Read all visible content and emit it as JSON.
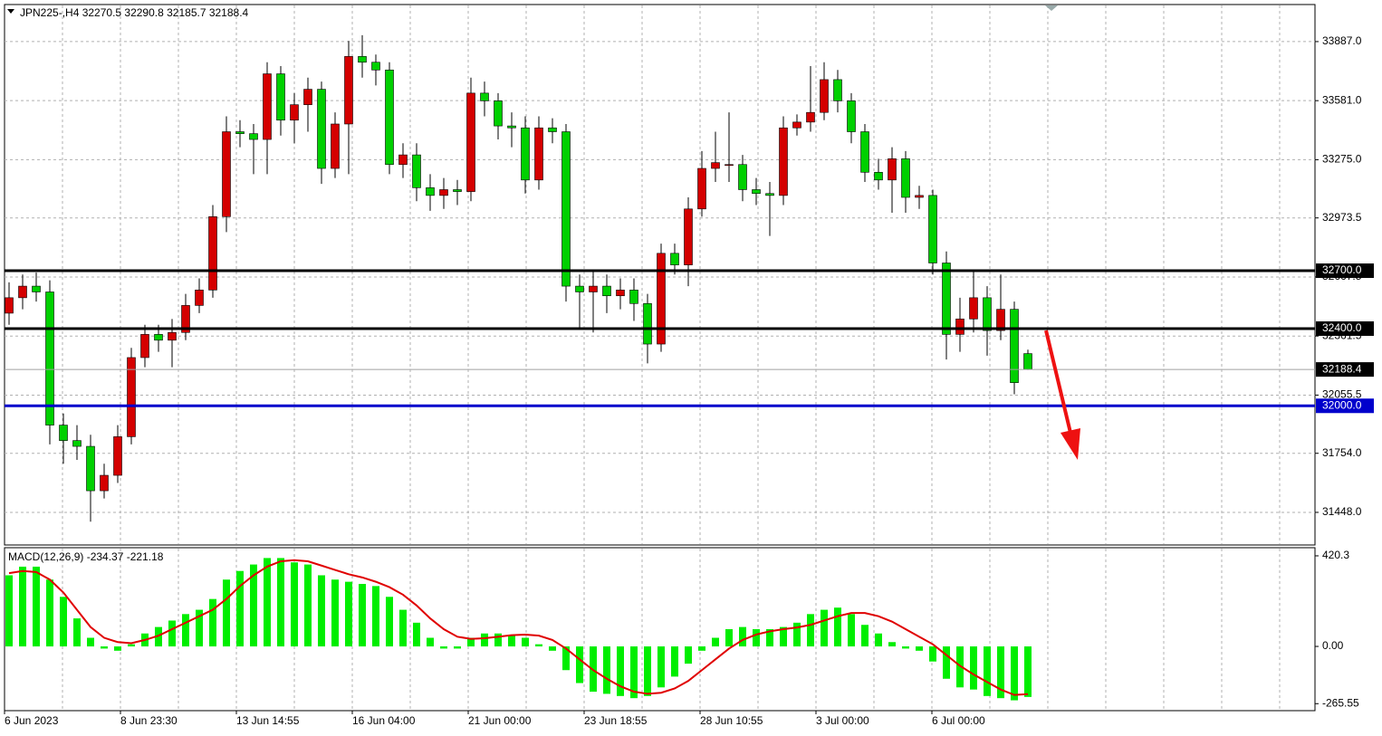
{
  "chart_data": [
    {
      "type": "candlestick",
      "title": "JPN225-,H4  32270.5 32290.8 32185.7 32188.4",
      "ylim": [
        31279,
        34079
      ],
      "yticks": [
        {
          "value": 33887,
          "label": "33887.0"
        },
        {
          "value": 33581,
          "label": "33581.0"
        },
        {
          "value": 33275,
          "label": "33275.0"
        },
        32973.5,
        32667.5,
        32361.5,
        32055.5,
        {
          "value": 31754,
          "label": "31754.0"
        },
        {
          "value": 31448,
          "label": "31448.0"
        }
      ],
      "grid": true,
      "up_color": "#d40000",
      "down_color": "#00d000",
      "levels": [
        {
          "value": 32700,
          "label": "32700.0",
          "color": "#000000"
        },
        {
          "value": 32400,
          "label": "32400.0",
          "color": "#000000"
        },
        {
          "value": 32000,
          "label": "32000.0",
          "color": "#0000cc"
        }
      ],
      "current_price": 32188.4,
      "ohlc": [
        [
          32480,
          32640,
          32420,
          32560
        ],
        [
          32560,
          32680,
          32500,
          32620
        ],
        [
          32620,
          32690,
          32540,
          32590
        ],
        [
          32590,
          32650,
          31800,
          31900
        ],
        [
          31900,
          31960,
          31700,
          31820
        ],
        [
          31820,
          31900,
          31720,
          31790
        ],
        [
          31790,
          31850,
          31400,
          31560
        ],
        [
          31560,
          31700,
          31520,
          31640
        ],
        [
          31640,
          31900,
          31600,
          31840
        ],
        [
          31840,
          32300,
          31800,
          32250
        ],
        [
          32250,
          32420,
          32200,
          32370
        ],
        [
          32370,
          32420,
          32280,
          32340
        ],
        [
          32340,
          32450,
          32200,
          32380
        ],
        [
          32380,
          32580,
          32340,
          32520
        ],
        [
          32520,
          32660,
          32480,
          32600
        ],
        [
          32600,
          33040,
          32560,
          32980
        ],
        [
          32980,
          33500,
          32900,
          33420
        ],
        [
          33420,
          33480,
          33340,
          33410
        ],
        [
          33410,
          33460,
          33200,
          33380
        ],
        [
          33380,
          33780,
          33200,
          33720
        ],
        [
          33720,
          33760,
          33400,
          33480
        ],
        [
          33480,
          33620,
          33360,
          33560
        ],
        [
          33560,
          33700,
          33420,
          33640
        ],
        [
          33640,
          33680,
          33150,
          33230
        ],
        [
          33230,
          33520,
          33180,
          33460
        ],
        [
          33460,
          33890,
          33200,
          33810
        ],
        [
          33810,
          33920,
          33700,
          33780
        ],
        [
          33780,
          33820,
          33660,
          33740
        ],
        [
          33740,
          33780,
          33200,
          33250
        ],
        [
          33250,
          33360,
          33180,
          33300
        ],
        [
          33300,
          33360,
          33060,
          33130
        ],
        [
          33130,
          33200,
          33010,
          33090
        ],
        [
          33090,
          33180,
          33020,
          33120
        ],
        [
          33120,
          33170,
          33040,
          33110
        ],
        [
          33110,
          33700,
          33060,
          33620
        ],
        [
          33620,
          33680,
          33500,
          33580
        ],
        [
          33580,
          33620,
          33380,
          33450
        ],
        [
          33450,
          33520,
          33340,
          33440
        ],
        [
          33440,
          33500,
          33100,
          33170
        ],
        [
          33170,
          33500,
          33120,
          33440
        ],
        [
          33440,
          33490,
          33360,
          33420
        ],
        [
          33420,
          33460,
          32540,
          32620
        ],
        [
          32620,
          32680,
          32400,
          32590
        ],
        [
          32590,
          32700,
          32380,
          32620
        ],
        [
          32620,
          32680,
          32480,
          32570
        ],
        [
          32570,
          32660,
          32500,
          32600
        ],
        [
          32600,
          32660,
          32440,
          32530
        ],
        [
          32530,
          32580,
          32220,
          32320
        ],
        [
          32320,
          32840,
          32280,
          32790
        ],
        [
          32790,
          32840,
          32680,
          32730
        ],
        [
          32730,
          33080,
          32620,
          33020
        ],
        [
          33020,
          33320,
          32980,
          33230
        ],
        [
          33230,
          33420,
          33160,
          33260
        ],
        [
          33250,
          33520,
          33160,
          33250
        ],
        [
          33250,
          33300,
          33060,
          33120
        ],
        [
          33120,
          33180,
          33040,
          33100
        ],
        [
          33100,
          33160,
          32880,
          33090
        ],
        [
          33090,
          33500,
          33040,
          33440
        ],
        [
          33440,
          33510,
          33400,
          33470
        ],
        [
          33470,
          33760,
          33420,
          33520
        ],
        [
          33520,
          33780,
          33480,
          33690
        ],
        [
          33690,
          33740,
          33520,
          33580
        ],
        [
          33580,
          33620,
          33360,
          33420
        ],
        [
          33420,
          33460,
          33160,
          33210
        ],
        [
          33210,
          33280,
          33120,
          33170
        ],
        [
          33170,
          33340,
          33000,
          33280
        ],
        [
          33280,
          33320,
          33000,
          33080
        ],
        [
          33080,
          33140,
          33020,
          33090
        ],
        [
          33090,
          33120,
          32680,
          32740
        ],
        [
          32740,
          32800,
          32240,
          32370
        ],
        [
          32370,
          32560,
          32280,
          32450
        ],
        [
          32450,
          32700,
          32380,
          32560
        ],
        [
          32560,
          32620,
          32260,
          32390
        ],
        [
          32390,
          32680,
          32340,
          32500
        ],
        [
          32500,
          32540,
          32060,
          32120
        ],
        [
          32270.5,
          32290.8,
          32185.7,
          32188.4
        ]
      ]
    },
    {
      "type": "macd",
      "title": "MACD(12,26,9) -234.37 -221.18",
      "ylim": [
        -298,
        458
      ],
      "yticks": [
        420.3,
        {
          "value": 0,
          "label": "0.00"
        },
        -265.55
      ],
      "hist_color": "#00ee00",
      "signal_color": "#e00000",
      "histogram": [
        330,
        370,
        370,
        310,
        230,
        130,
        40,
        -10,
        -20,
        10,
        60,
        90,
        120,
        150,
        170,
        220,
        310,
        350,
        380,
        410,
        410,
        390,
        380,
        330,
        310,
        300,
        290,
        280,
        230,
        170,
        110,
        40,
        -10,
        -10,
        40,
        60,
        60,
        50,
        40,
        10,
        -20,
        -110,
        -170,
        -210,
        -220,
        -230,
        -240,
        -230,
        -190,
        -140,
        -80,
        -20,
        40,
        80,
        90,
        80,
        80,
        90,
        110,
        150,
        170,
        180,
        150,
        100,
        60,
        20,
        -10,
        -20,
        -70,
        -150,
        -190,
        -200,
        -230,
        -240,
        -250,
        -234.37
      ],
      "signal": [
        340,
        350,
        345,
        310,
        250,
        170,
        90,
        40,
        20,
        15,
        30,
        50,
        80,
        110,
        140,
        170,
        220,
        280,
        330,
        370,
        395,
        400,
        395,
        375,
        355,
        335,
        320,
        300,
        275,
        240,
        190,
        130,
        80,
        45,
        35,
        38,
        45,
        52,
        55,
        50,
        30,
        -10,
        -60,
        -110,
        -150,
        -185,
        -210,
        -220,
        -215,
        -195,
        -160,
        -110,
        -60,
        -10,
        30,
        55,
        70,
        80,
        88,
        100,
        120,
        140,
        155,
        155,
        140,
        115,
        80,
        45,
        10,
        -40,
        -90,
        -130,
        -165,
        -200,
        -225,
        -221.18
      ],
      "time_labels": [
        "6 Jun 2023",
        "8 Jun 23:30",
        "13 Jun 14:55",
        "16 Jun 04:00",
        "21 Jun 00:00",
        "23 Jun 18:55",
        "28 Jun 10:55",
        "3 Jul 00:00",
        "6 Jul 00:00"
      ]
    }
  ]
}
